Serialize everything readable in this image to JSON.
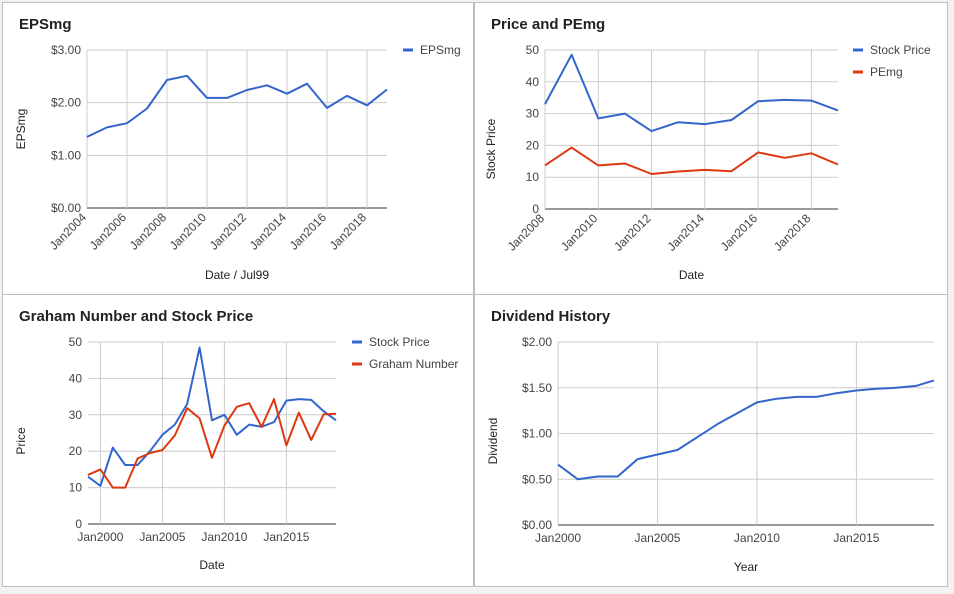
{
  "chart_data": [
    {
      "id": "eps",
      "type": "line",
      "title": "EPSmg",
      "xlabel": "Date / Jul99",
      "ylabel": "EPSmg",
      "x_range": [
        2004,
        2019
      ],
      "ylim": [
        0,
        3
      ],
      "y_ticks": [
        {
          "v": 0,
          "label": "$0.00"
        },
        {
          "v": 1,
          "label": "$1.00"
        },
        {
          "v": 2,
          "label": "$2.00"
        },
        {
          "v": 3,
          "label": "$3.00"
        }
      ],
      "x_ticks": [
        {
          "v": 2004,
          "label": "Jan2004"
        },
        {
          "v": 2006,
          "label": "Jan2006"
        },
        {
          "v": 2008,
          "label": "Jan2008"
        },
        {
          "v": 2010,
          "label": "Jan2010"
        },
        {
          "v": 2012,
          "label": "Jan2012"
        },
        {
          "v": 2014,
          "label": "Jan2014"
        },
        {
          "v": 2016,
          "label": "Jan2016"
        },
        {
          "v": 2018,
          "label": "Jan2018"
        }
      ],
      "x_tick_rotated": true,
      "x": [
        2004,
        2005,
        2006,
        2007,
        2008,
        2009,
        2010,
        2011,
        2012,
        2013,
        2014,
        2015,
        2016,
        2017,
        2018,
        2019
      ],
      "series": [
        {
          "name": "EPSmg",
          "color": "#3366cc",
          "values": [
            1.35,
            1.53,
            1.61,
            1.89,
            2.43,
            2.51,
            2.09,
            2.09,
            2.24,
            2.33,
            2.17,
            2.36,
            1.9,
            2.13,
            1.95,
            2.25
          ]
        }
      ],
      "grid": true,
      "legend": "top-right"
    },
    {
      "id": "price_pe",
      "type": "line",
      "title": "Price and PEmg",
      "xlabel": "Date",
      "ylabel": "Stock Price",
      "x_range": [
        2008,
        2019
      ],
      "ylim": [
        0,
        50
      ],
      "y_ticks": [
        {
          "v": 0,
          "label": "0"
        },
        {
          "v": 10,
          "label": "10"
        },
        {
          "v": 20,
          "label": "20"
        },
        {
          "v": 30,
          "label": "30"
        },
        {
          "v": 40,
          "label": "40"
        },
        {
          "v": 50,
          "label": "50"
        }
      ],
      "x_ticks": [
        {
          "v": 2008,
          "label": "Jan2008"
        },
        {
          "v": 2010,
          "label": "Jan2010"
        },
        {
          "v": 2012,
          "label": "Jan2012"
        },
        {
          "v": 2014,
          "label": "Jan2014"
        },
        {
          "v": 2016,
          "label": "Jan2016"
        },
        {
          "v": 2018,
          "label": "Jan2018"
        }
      ],
      "x_tick_rotated": true,
      "x": [
        2008,
        2009,
        2010,
        2011,
        2012,
        2013,
        2014,
        2015,
        2016,
        2017,
        2018,
        2019
      ],
      "series": [
        {
          "name": "Stock Price",
          "color": "#3366cc",
          "values": [
            33,
            48.5,
            28.5,
            30,
            24.5,
            27.3,
            26.7,
            28,
            33.9,
            34.3,
            34.1,
            31
          ]
        },
        {
          "name": "PEmg",
          "color": "#dc3912",
          "values": [
            13.7,
            19.3,
            13.7,
            14.3,
            11,
            11.8,
            12.3,
            11.9,
            17.8,
            16.1,
            17.5,
            14
          ]
        }
      ],
      "grid": true,
      "legend": "top-right"
    },
    {
      "id": "graham",
      "type": "line",
      "title": "Graham Number and Stock Price",
      "xlabel": "Date",
      "ylabel": "Price",
      "x_range": [
        1999,
        2019
      ],
      "ylim": [
        0,
        50
      ],
      "y_ticks": [
        {
          "v": 0,
          "label": "0"
        },
        {
          "v": 10,
          "label": "10"
        },
        {
          "v": 20,
          "label": "20"
        },
        {
          "v": 30,
          "label": "30"
        },
        {
          "v": 40,
          "label": "40"
        },
        {
          "v": 50,
          "label": "50"
        }
      ],
      "x_ticks": [
        {
          "v": 2000,
          "label": "Jan2000"
        },
        {
          "v": 2005,
          "label": "Jan2005"
        },
        {
          "v": 2010,
          "label": "Jan2010"
        },
        {
          "v": 2015,
          "label": "Jan2015"
        }
      ],
      "x_tick_rotated": false,
      "x": [
        1999,
        2000,
        2001,
        2002,
        2003,
        2004,
        2005,
        2006,
        2007,
        2008,
        2009,
        2010,
        2011,
        2012,
        2013,
        2014,
        2015,
        2016,
        2017,
        2018,
        2019
      ],
      "series": [
        {
          "name": "Stock Price",
          "color": "#3366cc",
          "values": [
            13,
            10.5,
            21,
            16.2,
            16.2,
            20,
            24.5,
            27.3,
            33,
            48.5,
            28.5,
            30,
            24.5,
            27.3,
            26.7,
            28,
            33.9,
            34.3,
            34.1,
            31,
            28.5
          ]
        },
        {
          "name": "Graham Number",
          "color": "#dc3912",
          "values": [
            13.5,
            15,
            10,
            10,
            18,
            19.5,
            20.3,
            24.3,
            31.8,
            29,
            18.2,
            27,
            32.2,
            33.2,
            26.7,
            34.3,
            21.6,
            30.6,
            23.1,
            30.1,
            30.3
          ]
        }
      ],
      "grid": true,
      "legend": "top-right"
    },
    {
      "id": "dividend",
      "type": "line",
      "title": "Dividend History",
      "xlabel": "Year",
      "ylabel": "Dividend",
      "x_range": [
        2000,
        2018.9
      ],
      "ylim": [
        0,
        2
      ],
      "y_ticks": [
        {
          "v": 0,
          "label": "$0.00"
        },
        {
          "v": 0.5,
          "label": "$0.50"
        },
        {
          "v": 1,
          "label": "$1.00"
        },
        {
          "v": 1.5,
          "label": "$1.50"
        },
        {
          "v": 2,
          "label": "$2.00"
        }
      ],
      "x_ticks": [
        {
          "v": 2000,
          "label": "Jan2000"
        },
        {
          "v": 2005,
          "label": "Jan2005"
        },
        {
          "v": 2010,
          "label": "Jan2010"
        },
        {
          "v": 2015,
          "label": "Jan2015"
        }
      ],
      "x_tick_rotated": false,
      "x": [
        2000,
        2001,
        2002,
        2003,
        2004,
        2005,
        2006,
        2007,
        2008,
        2009,
        2010,
        2011,
        2012,
        2013,
        2014,
        2015,
        2016,
        2017,
        2018,
        2018.9
      ],
      "series": [
        {
          "name": "Dividend",
          "color": "#3366cc",
          "values": [
            0.66,
            0.5,
            0.53,
            0.53,
            0.72,
            0.77,
            0.82,
            0.96,
            1.1,
            1.22,
            1.34,
            1.38,
            1.4,
            1.4,
            1.44,
            1.47,
            1.49,
            1.5,
            1.52,
            1.58
          ]
        }
      ],
      "grid": true,
      "legend": "none"
    }
  ]
}
